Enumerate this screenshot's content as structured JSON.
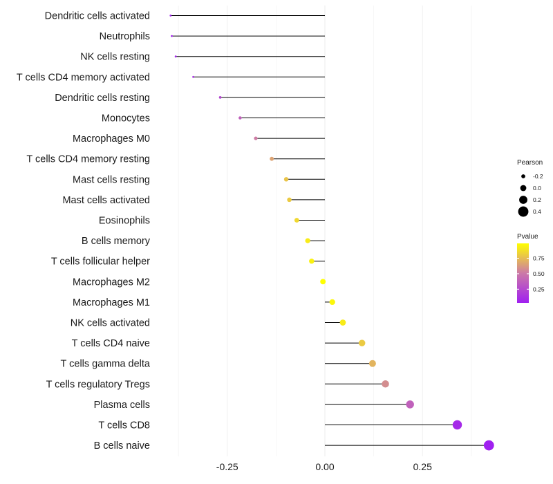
{
  "chart_data": {
    "type": "lollipop",
    "xlabel": "",
    "ylabel": "",
    "xlim": [
      -0.47,
      0.45
    ],
    "x_ticks": [
      -0.25,
      0.0,
      0.25
    ],
    "x_tick_labels": [
      "-0.25",
      "0.00",
      "0.25"
    ],
    "grid": "vertical",
    "categories": [
      "Dendritic cells activated",
      "Neutrophils",
      "NK cells resting",
      "T cells CD4 memory activated",
      "Dendritic cells resting",
      "Monocytes",
      "Macrophages M0",
      "T cells CD4 memory resting",
      "Mast cells resting",
      "Mast cells activated",
      "Eosinophils",
      "B cells memory",
      "T cells follicular helper",
      "Macrophages M2",
      "Macrophages M1",
      "NK cells activated",
      "T cells CD4 naive",
      "T cells gamma delta",
      "T cells regulatory  Tregs ",
      "Plasma cells",
      "T cells CD8",
      "B cells naive"
    ],
    "pearson": [
      -0.395,
      -0.392,
      -0.382,
      -0.337,
      -0.268,
      -0.217,
      -0.177,
      -0.136,
      -0.099,
      -0.091,
      -0.072,
      -0.044,
      -0.034,
      -0.005,
      0.019,
      0.046,
      0.095,
      0.122,
      0.155,
      0.218,
      0.339,
      0.42
    ],
    "pvalue": [
      0.05,
      0.05,
      0.06,
      0.12,
      0.24,
      0.38,
      0.52,
      0.66,
      0.78,
      0.8,
      0.85,
      0.92,
      0.94,
      0.99,
      0.96,
      0.92,
      0.8,
      0.72,
      0.58,
      0.38,
      0.08,
      0.03
    ],
    "legend_size": {
      "title": "Pearson",
      "values": [
        -0.2,
        0.0,
        0.2,
        0.4
      ],
      "labels": [
        "-0.2",
        "0.0",
        "0.2",
        "0.4"
      ]
    },
    "legend_color": {
      "title": "Pvalue",
      "ticks": [
        0.75,
        0.5,
        0.25
      ],
      "tick_labels": [
        "0.75",
        "0.50",
        "0.25"
      ],
      "range": [
        0.03,
        0.99
      ],
      "low_color": "#a020f0",
      "mid_color": "#cc79a7",
      "high_color": "#ffff00"
    },
    "legend_position": "right"
  }
}
